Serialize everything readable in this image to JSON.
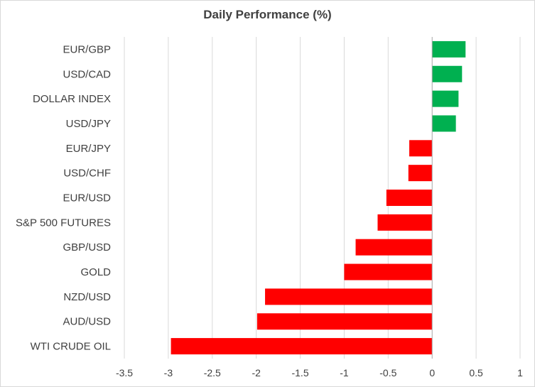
{
  "chart_data": {
    "type": "bar",
    "orientation": "horizontal",
    "title": "Daily Performance  (%)",
    "xlabel": "",
    "ylabel": "",
    "xlim": [
      -3.5,
      1
    ],
    "xticks": [
      -3.5,
      -3,
      -2.5,
      -2,
      -1.5,
      -1,
      -0.5,
      0,
      0.5,
      1
    ],
    "xtick_labels": [
      "-3.5",
      "-3",
      "-2.5",
      "-2",
      "-1.5",
      "-1",
      "-0.5",
      "0",
      "0.5",
      "1"
    ],
    "grid": "vertical",
    "legend": "none",
    "categories": [
      "EUR/GBP",
      "USD/CAD",
      "DOLLAR INDEX",
      "USD/JPY",
      "EUR/JPY",
      "USD/CHF",
      "EUR/USD",
      "S&P 500 FUTURES",
      "GBP/USD",
      "GOLD",
      "NZD/USD",
      "AUD/USD",
      "WTI CRUDE OIL"
    ],
    "values": [
      0.38,
      0.34,
      0.3,
      0.27,
      -0.26,
      -0.27,
      -0.52,
      -0.62,
      -0.87,
      -1.0,
      -1.9,
      -1.99,
      -2.97
    ],
    "colors": {
      "positive": "#00b050",
      "negative": "#ff0000",
      "grid": "#d9d9d9",
      "zero_line": "#a6a6a6"
    }
  }
}
